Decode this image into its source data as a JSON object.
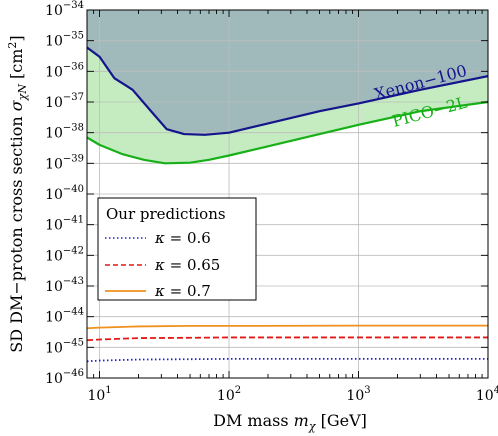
{
  "chart_data": {
    "type": "line",
    "xscale": "log",
    "yscale": "log",
    "xlim": [
      8,
      10000
    ],
    "ylim": [
      1e-46,
      1e-34
    ],
    "grid": true,
    "xlabel": "DM mass m_χ [GeV]",
    "xlabel_parts": {
      "main": "DM mass ",
      "var": "m",
      "sub": "χ",
      "unit": " [GeV]"
    },
    "ylabel": "SD DM−proton cross section σ_χN [cm²]",
    "ylabel_parts": {
      "main": "SD DM−proton cross section ",
      "var": "σ",
      "sub": "χN",
      "unit": " [cm",
      "sup": "2",
      "close": "]"
    },
    "x_ticks": [
      {
        "value": 10,
        "base": "10",
        "exp": "1"
      },
      {
        "value": 100,
        "base": "10",
        "exp": "2"
      },
      {
        "value": 1000,
        "base": "10",
        "exp": "3"
      },
      {
        "value": 10000,
        "base": "10",
        "exp": "4"
      }
    ],
    "y_ticks": [
      {
        "value": 1e-34,
        "base": "10",
        "exp": "−34"
      },
      {
        "value": 1e-35,
        "base": "10",
        "exp": "−35"
      },
      {
        "value": 1e-36,
        "base": "10",
        "exp": "−36"
      },
      {
        "value": 1e-37,
        "base": "10",
        "exp": "−37"
      },
      {
        "value": 1e-38,
        "base": "10",
        "exp": "−38"
      },
      {
        "value": 1e-39,
        "base": "10",
        "exp": "−39"
      },
      {
        "value": 1e-40,
        "base": "10",
        "exp": "−40"
      },
      {
        "value": 1e-41,
        "base": "10",
        "exp": "−41"
      },
      {
        "value": 1e-42,
        "base": "10",
        "exp": "−42"
      },
      {
        "value": 1e-43,
        "base": "10",
        "exp": "−43"
      },
      {
        "value": 1e-44,
        "base": "10",
        "exp": "−44"
      },
      {
        "value": 1e-45,
        "base": "10",
        "exp": "−45"
      },
      {
        "value": 1e-46,
        "base": "10",
        "exp": "−46"
      }
    ],
    "series": [
      {
        "name": "Xenon−100",
        "style": "solid",
        "color": "#14148c",
        "fill": "#a0babc",
        "x": [
          8,
          10,
          13,
          18,
          25,
          33,
          45,
          65,
          100,
          200,
          500,
          1000,
          3000,
          10000
        ],
        "y": [
          6e-36,
          3e-36,
          6e-37,
          2.5e-37,
          5e-38,
          1.3e-38,
          9e-39,
          8.5e-39,
          1e-38,
          2e-38,
          5e-38,
          9e-38,
          2.5e-37,
          7e-37
        ]
      },
      {
        "name": "PICO−2L",
        "style": "solid",
        "color": "#18b018",
        "fill": "#c5ecc0",
        "x": [
          8,
          10,
          15,
          22,
          32,
          50,
          70,
          100,
          200,
          500,
          1000,
          3000,
          10000
        ],
        "y": [
          7e-39,
          4e-39,
          2e-39,
          1.3e-39,
          1e-39,
          1.05e-39,
          1.3e-39,
          1.8e-39,
          3.6e-39,
          9e-39,
          1.8e-38,
          5e-38,
          1e-37
        ]
      },
      {
        "name": "κ = 0.6",
        "style": "dotted",
        "color": "#1f1fd9",
        "x": [
          8,
          10,
          20,
          50,
          100,
          1000,
          10000
        ],
        "y": [
          3.5e-46,
          3.7e-46,
          4e-46,
          4.1e-46,
          4.2e-46,
          4.2e-46,
          4.2e-46
        ]
      },
      {
        "name": "κ = 0.65",
        "style": "dashed",
        "color": "#e01818",
        "x": [
          8,
          10,
          20,
          50,
          100,
          1000,
          10000
        ],
        "y": [
          1.7e-45,
          1.8e-45,
          2e-45,
          2.05e-45,
          2.1e-45,
          2.1e-45,
          2.1e-45
        ]
      },
      {
        "name": "κ = 0.7",
        "style": "solid",
        "color": "#f0901e",
        "x": [
          8,
          10,
          20,
          50,
          100,
          1000,
          10000
        ],
        "y": [
          4.2e-45,
          4.4e-45,
          4.8e-45,
          5e-45,
          5e-45,
          5.1e-45,
          5.1e-45
        ]
      }
    ],
    "legend": {
      "title": "Our predictions",
      "placement": "center-left",
      "entries": [
        {
          "symbol": "κ",
          "eq": " = 0.6"
        },
        {
          "symbol": "κ",
          "eq": " = 0.65"
        },
        {
          "symbol": "κ",
          "eq": " = 0.7"
        }
      ]
    },
    "annotations": [
      {
        "text": "Xenon−100",
        "color": "#14148c"
      },
      {
        "text": "PICO−2L",
        "color": "#18b018"
      }
    ]
  }
}
